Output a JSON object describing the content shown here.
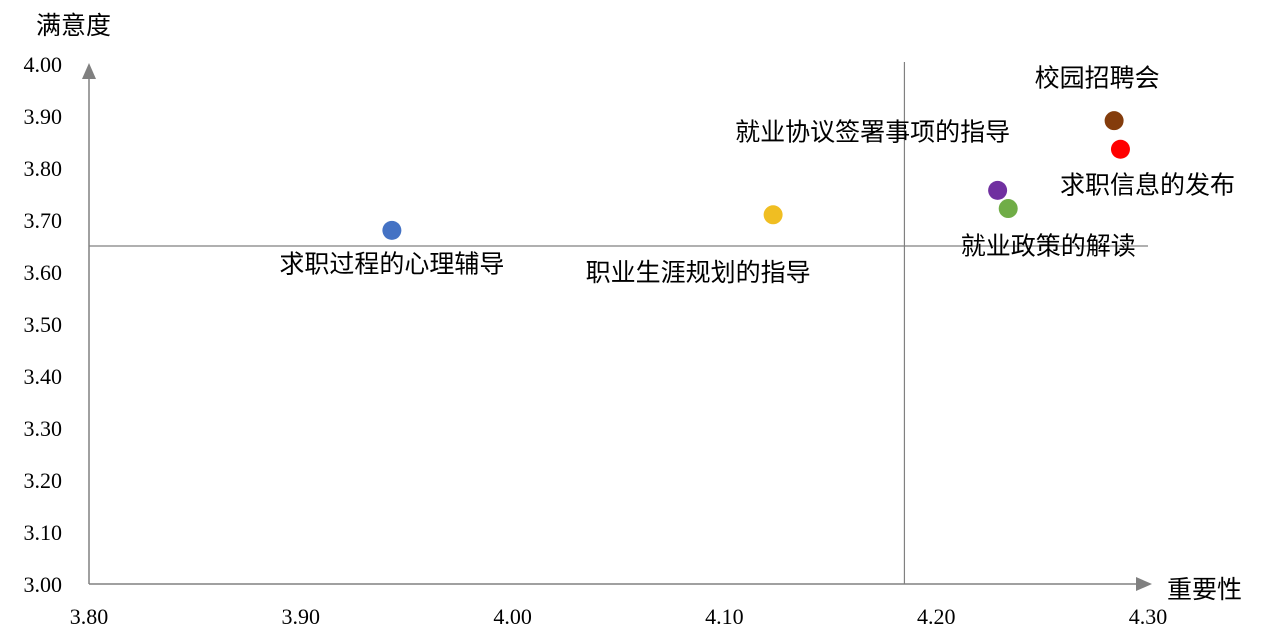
{
  "chart_data": {
    "type": "scatter",
    "xlabel": "重要性",
    "ylabel": "满意度",
    "xlim": [
      3.8,
      4.3
    ],
    "ylim": [
      3.0,
      4.0
    ],
    "x_ticks": [
      "3.80",
      "3.90",
      "4.00",
      "4.10",
      "4.20",
      "4.30"
    ],
    "y_ticks": [
      "3.00",
      "3.10",
      "3.20",
      "3.30",
      "3.40",
      "3.50",
      "3.60",
      "3.70",
      "3.80",
      "3.90",
      "4.00"
    ],
    "reference_lines": {
      "x": 4.185,
      "y": 3.65
    },
    "points": [
      {
        "label": "求职过程的心理辅导",
        "x": 3.943,
        "y": 3.68,
        "color": "#4472C4"
      },
      {
        "label": "职业生涯规划的指导",
        "x": 4.123,
        "y": 3.71,
        "color": "#F0BE22"
      },
      {
        "label": "就业协议签署事项的指导",
        "x": 4.229,
        "y": 3.757,
        "color": "#7030A0"
      },
      {
        "label": "就业政策的解读",
        "x": 4.234,
        "y": 3.722,
        "color": "#70AD47"
      },
      {
        "label": "校园招聘会",
        "x": 4.284,
        "y": 3.891,
        "color": "#843C0C"
      },
      {
        "label": "求职信息的发布",
        "x": 4.287,
        "y": 3.836,
        "color": "#FF0000"
      }
    ]
  }
}
